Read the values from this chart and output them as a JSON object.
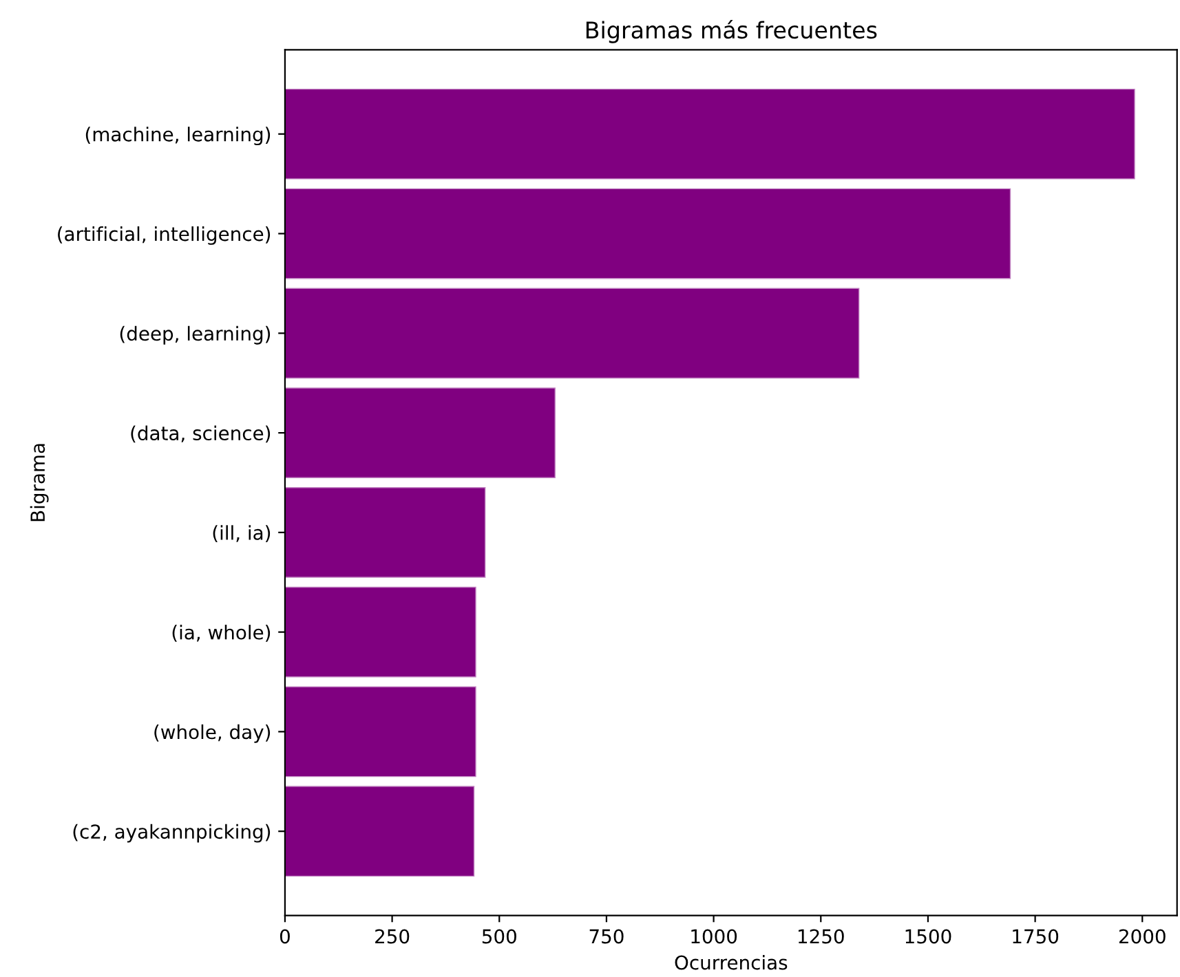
{
  "chart_data": {
    "type": "bar",
    "orientation": "horizontal",
    "title": "Bigramas más frecuentes",
    "xlabel": "Ocurrencias",
    "ylabel": "Bigrama",
    "categories": [
      "(machine, learning)",
      "(artificial, intelligence)",
      "(deep, learning)",
      "(data, science)",
      "(ill, ia)",
      "(ia, whole)",
      "(whole, day)",
      "(c2, ayakannpicking)"
    ],
    "values": [
      1982,
      1692,
      1339,
      630,
      467,
      445,
      445,
      441
    ],
    "color": "#800080",
    "xlim": [
      0,
      2081
    ],
    "xticks": [
      0,
      250,
      500,
      750,
      1000,
      1250,
      1500,
      1750,
      2000
    ],
    "grid": false
  }
}
